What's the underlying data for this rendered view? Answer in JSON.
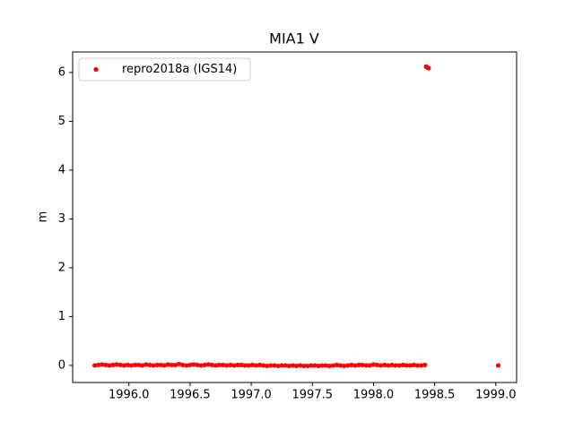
{
  "chart_data": {
    "type": "scatter",
    "title": "MIA1 V",
    "y_label": "m",
    "series": [
      {
        "name": "repro2018a (IGS14)",
        "color": "red",
        "x": [
          1995.72,
          1995.75,
          1995.78,
          1995.81,
          1995.84,
          1995.87,
          1995.9,
          1995.93,
          1995.96,
          1995.99,
          1996.02,
          1996.05,
          1996.08,
          1996.11,
          1996.14,
          1996.17,
          1996.2,
          1996.23,
          1996.26,
          1996.29,
          1996.32,
          1996.35,
          1996.38,
          1996.41,
          1996.44,
          1996.47,
          1996.5,
          1996.53,
          1996.56,
          1996.59,
          1996.62,
          1996.65,
          1996.68,
          1996.71,
          1996.74,
          1996.77,
          1996.8,
          1996.83,
          1996.86,
          1996.89,
          1996.92,
          1996.95,
          1996.98,
          1997.01,
          1997.04,
          1997.07,
          1997.1,
          1997.13,
          1997.16,
          1997.19,
          1997.22,
          1997.25,
          1997.28,
          1997.31,
          1997.34,
          1997.37,
          1997.4,
          1997.43,
          1997.46,
          1997.49,
          1997.52,
          1997.55,
          1997.58,
          1997.61,
          1997.64,
          1997.67,
          1997.7,
          1997.73,
          1997.76,
          1997.79,
          1997.82,
          1997.85,
          1997.88,
          1997.91,
          1997.94,
          1997.97,
          1998.0,
          1998.03,
          1998.06,
          1998.09,
          1998.12,
          1998.15,
          1998.18,
          1998.21,
          1998.24,
          1998.27,
          1998.3,
          1998.33,
          1998.36,
          1998.39,
          1998.42,
          1998.43,
          1998.44,
          1998.45,
          1999.02
        ],
        "values": [
          0.0,
          0.01,
          0.02,
          0.01,
          0.0,
          0.01,
          0.02,
          0.01,
          0.0,
          0.01,
          0.0,
          0.01,
          0.01,
          0.0,
          0.02,
          0.01,
          0.0,
          0.01,
          0.01,
          0.0,
          0.02,
          0.01,
          0.01,
          0.03,
          0.01,
          0.0,
          0.01,
          0.02,
          0.01,
          0.0,
          0.01,
          0.02,
          0.01,
          0.0,
          0.01,
          0.01,
          0.0,
          0.01,
          0.0,
          0.01,
          0.01,
          0.0,
          0.0,
          0.01,
          0.0,
          0.01,
          0.0,
          -0.01,
          0.0,
          0.0,
          -0.01,
          0.0,
          0.0,
          -0.01,
          0.0,
          -0.01,
          0.0,
          -0.01,
          -0.01,
          0.0,
          0.0,
          -0.01,
          0.0,
          0.0,
          -0.01,
          0.0,
          0.01,
          0.0,
          -0.01,
          0.0,
          0.01,
          0.0,
          0.01,
          0.01,
          0.0,
          0.0,
          0.02,
          0.01,
          0.0,
          0.01,
          0.0,
          0.01,
          0.0,
          0.0,
          0.01,
          0.0,
          0.0,
          0.01,
          0.0,
          0.0,
          0.01,
          6.12,
          6.1,
          6.09,
          0.0
        ]
      }
    ],
    "xlim": [
      1995.54,
      1999.17
    ],
    "xticks": [
      {
        "value": 1996,
        "label": "1996.0"
      },
      {
        "value": 1996.5,
        "label": "1996.5"
      },
      {
        "value": 1997,
        "label": "1997.0"
      },
      {
        "value": 1997.5,
        "label": "1997.5"
      },
      {
        "value": 1998,
        "label": "1998.0"
      },
      {
        "value": 1998.5,
        "label": "1998.5"
      },
      {
        "value": 1999,
        "label": "1999.0"
      }
    ],
    "ylim": [
      -0.35,
      6.42
    ],
    "yticks": [
      0,
      1,
      2,
      3,
      4,
      5,
      6
    ],
    "legend": "upper left",
    "grid": false
  }
}
